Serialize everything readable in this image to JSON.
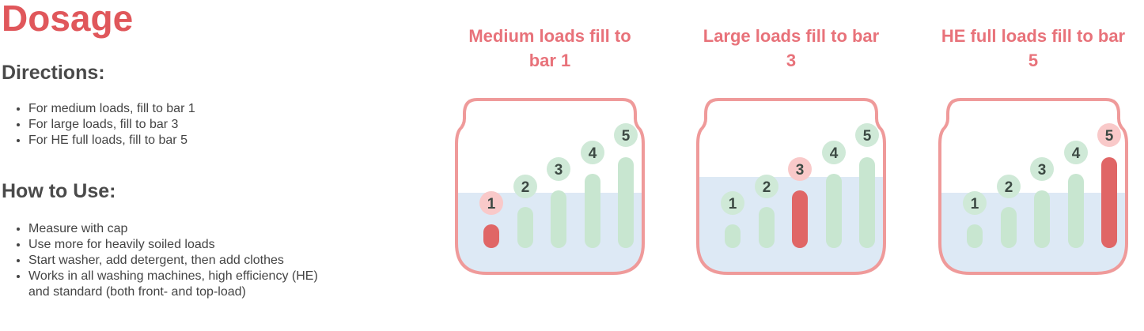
{
  "title": "Dosage",
  "directions": {
    "heading": "Directions:",
    "items": [
      "For medium loads, fill to bar 1",
      "For large loads, fill to bar 3",
      "For HE full loads, fill to bar 5"
    ]
  },
  "how_to_use": {
    "heading": "How to Use:",
    "items": [
      "Measure with cap",
      "Use more for heavily soiled loads",
      "Start washer, add detergent, then add clothes",
      "Works in all washing machines, high efficiency (HE) and standard (both front- and top-load)"
    ]
  },
  "panels": [
    {
      "title": "Medium loads fill to bar 1",
      "fill_bar": 1
    },
    {
      "title": "Large loads fill to bar 3",
      "fill_bar": 3
    },
    {
      "title": "HE full loads fill to bar 5",
      "fill_bar": 5
    }
  ],
  "bar_labels": [
    "1",
    "2",
    "3",
    "4",
    "5"
  ],
  "colors": {
    "accent": "#e0575b",
    "jar": "#ef9a9a",
    "water": "#dde9f5",
    "bar": "#c8e6d0",
    "bar_active": "#e06666",
    "badge": "#cfe9d7",
    "badge_active": "#f9c9c9"
  }
}
